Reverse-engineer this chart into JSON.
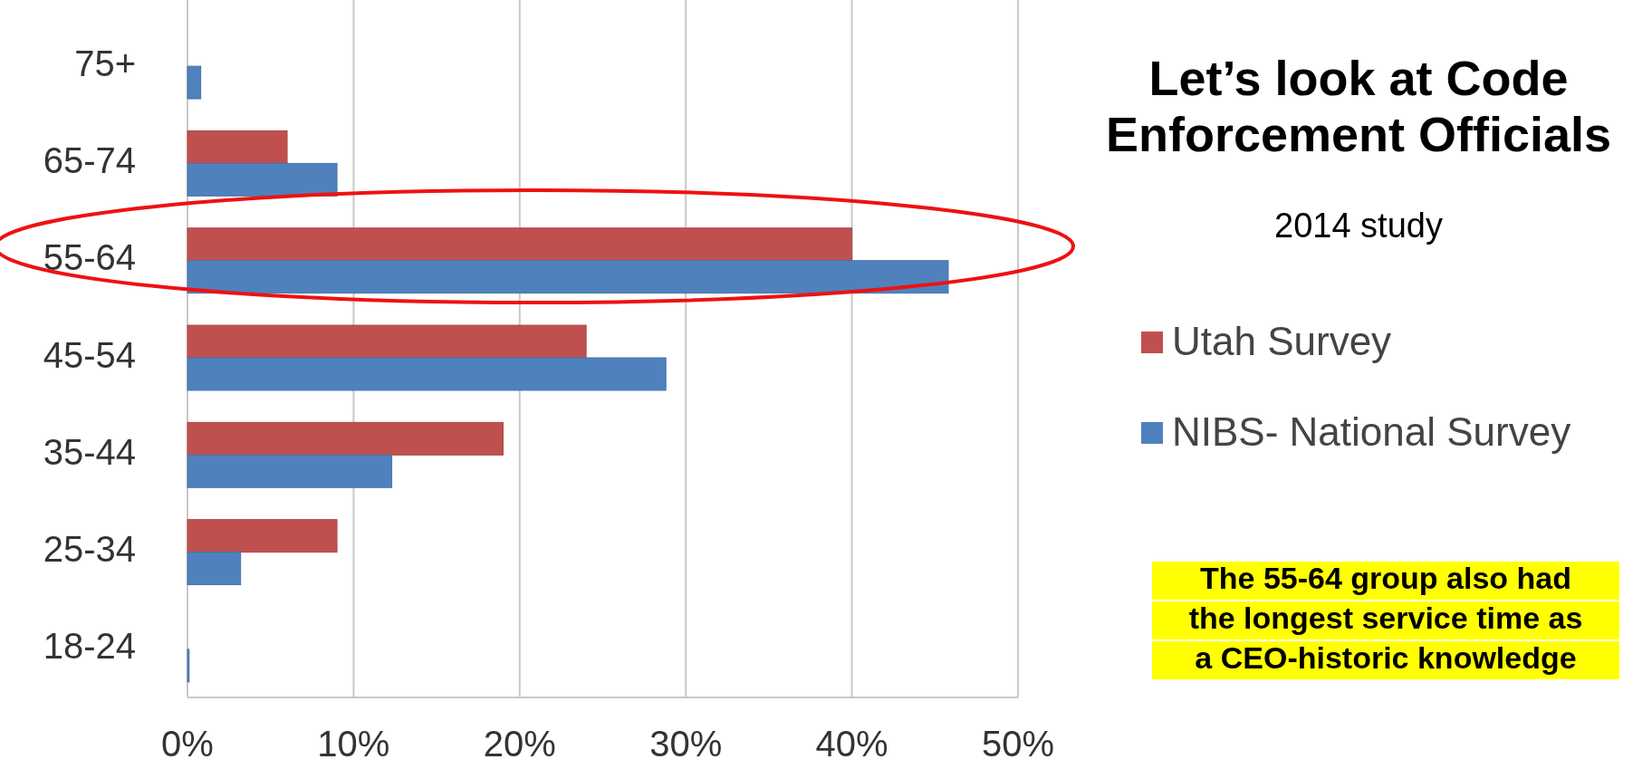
{
  "chart_data": {
    "type": "bar",
    "orientation": "horizontal",
    "title": "Let’s look at Code Enforcement Officials",
    "subtitle": "2014 study",
    "categories": [
      "75+",
      "65-74",
      "55-64",
      "45-54",
      "35-44",
      "25-34",
      "18-24"
    ],
    "series": [
      {
        "name": "Utah Survey",
        "color": "#c0504d",
        "values": [
          null,
          6,
          40,
          24,
          19,
          9,
          null
        ]
      },
      {
        "name": "NIBS- National Survey",
        "color": "#4f81bd",
        "values": [
          0.8,
          9,
          45.8,
          28.8,
          12.3,
          3.2,
          0.1
        ]
      }
    ],
    "xlim": [
      0,
      50
    ],
    "xticks": [
      {
        "value": 0,
        "label": "0%"
      },
      {
        "value": 10,
        "label": "10%"
      },
      {
        "value": 20,
        "label": "20%"
      },
      {
        "value": 30,
        "label": "30%"
      },
      {
        "value": 40,
        "label": "40%"
      },
      {
        "value": 50,
        "label": "50%"
      }
    ],
    "grid": "x",
    "legend": "right",
    "annotations": [
      "The 55-64 group also had the longest service time as a CEO-historic knowledge"
    ]
  }
}
